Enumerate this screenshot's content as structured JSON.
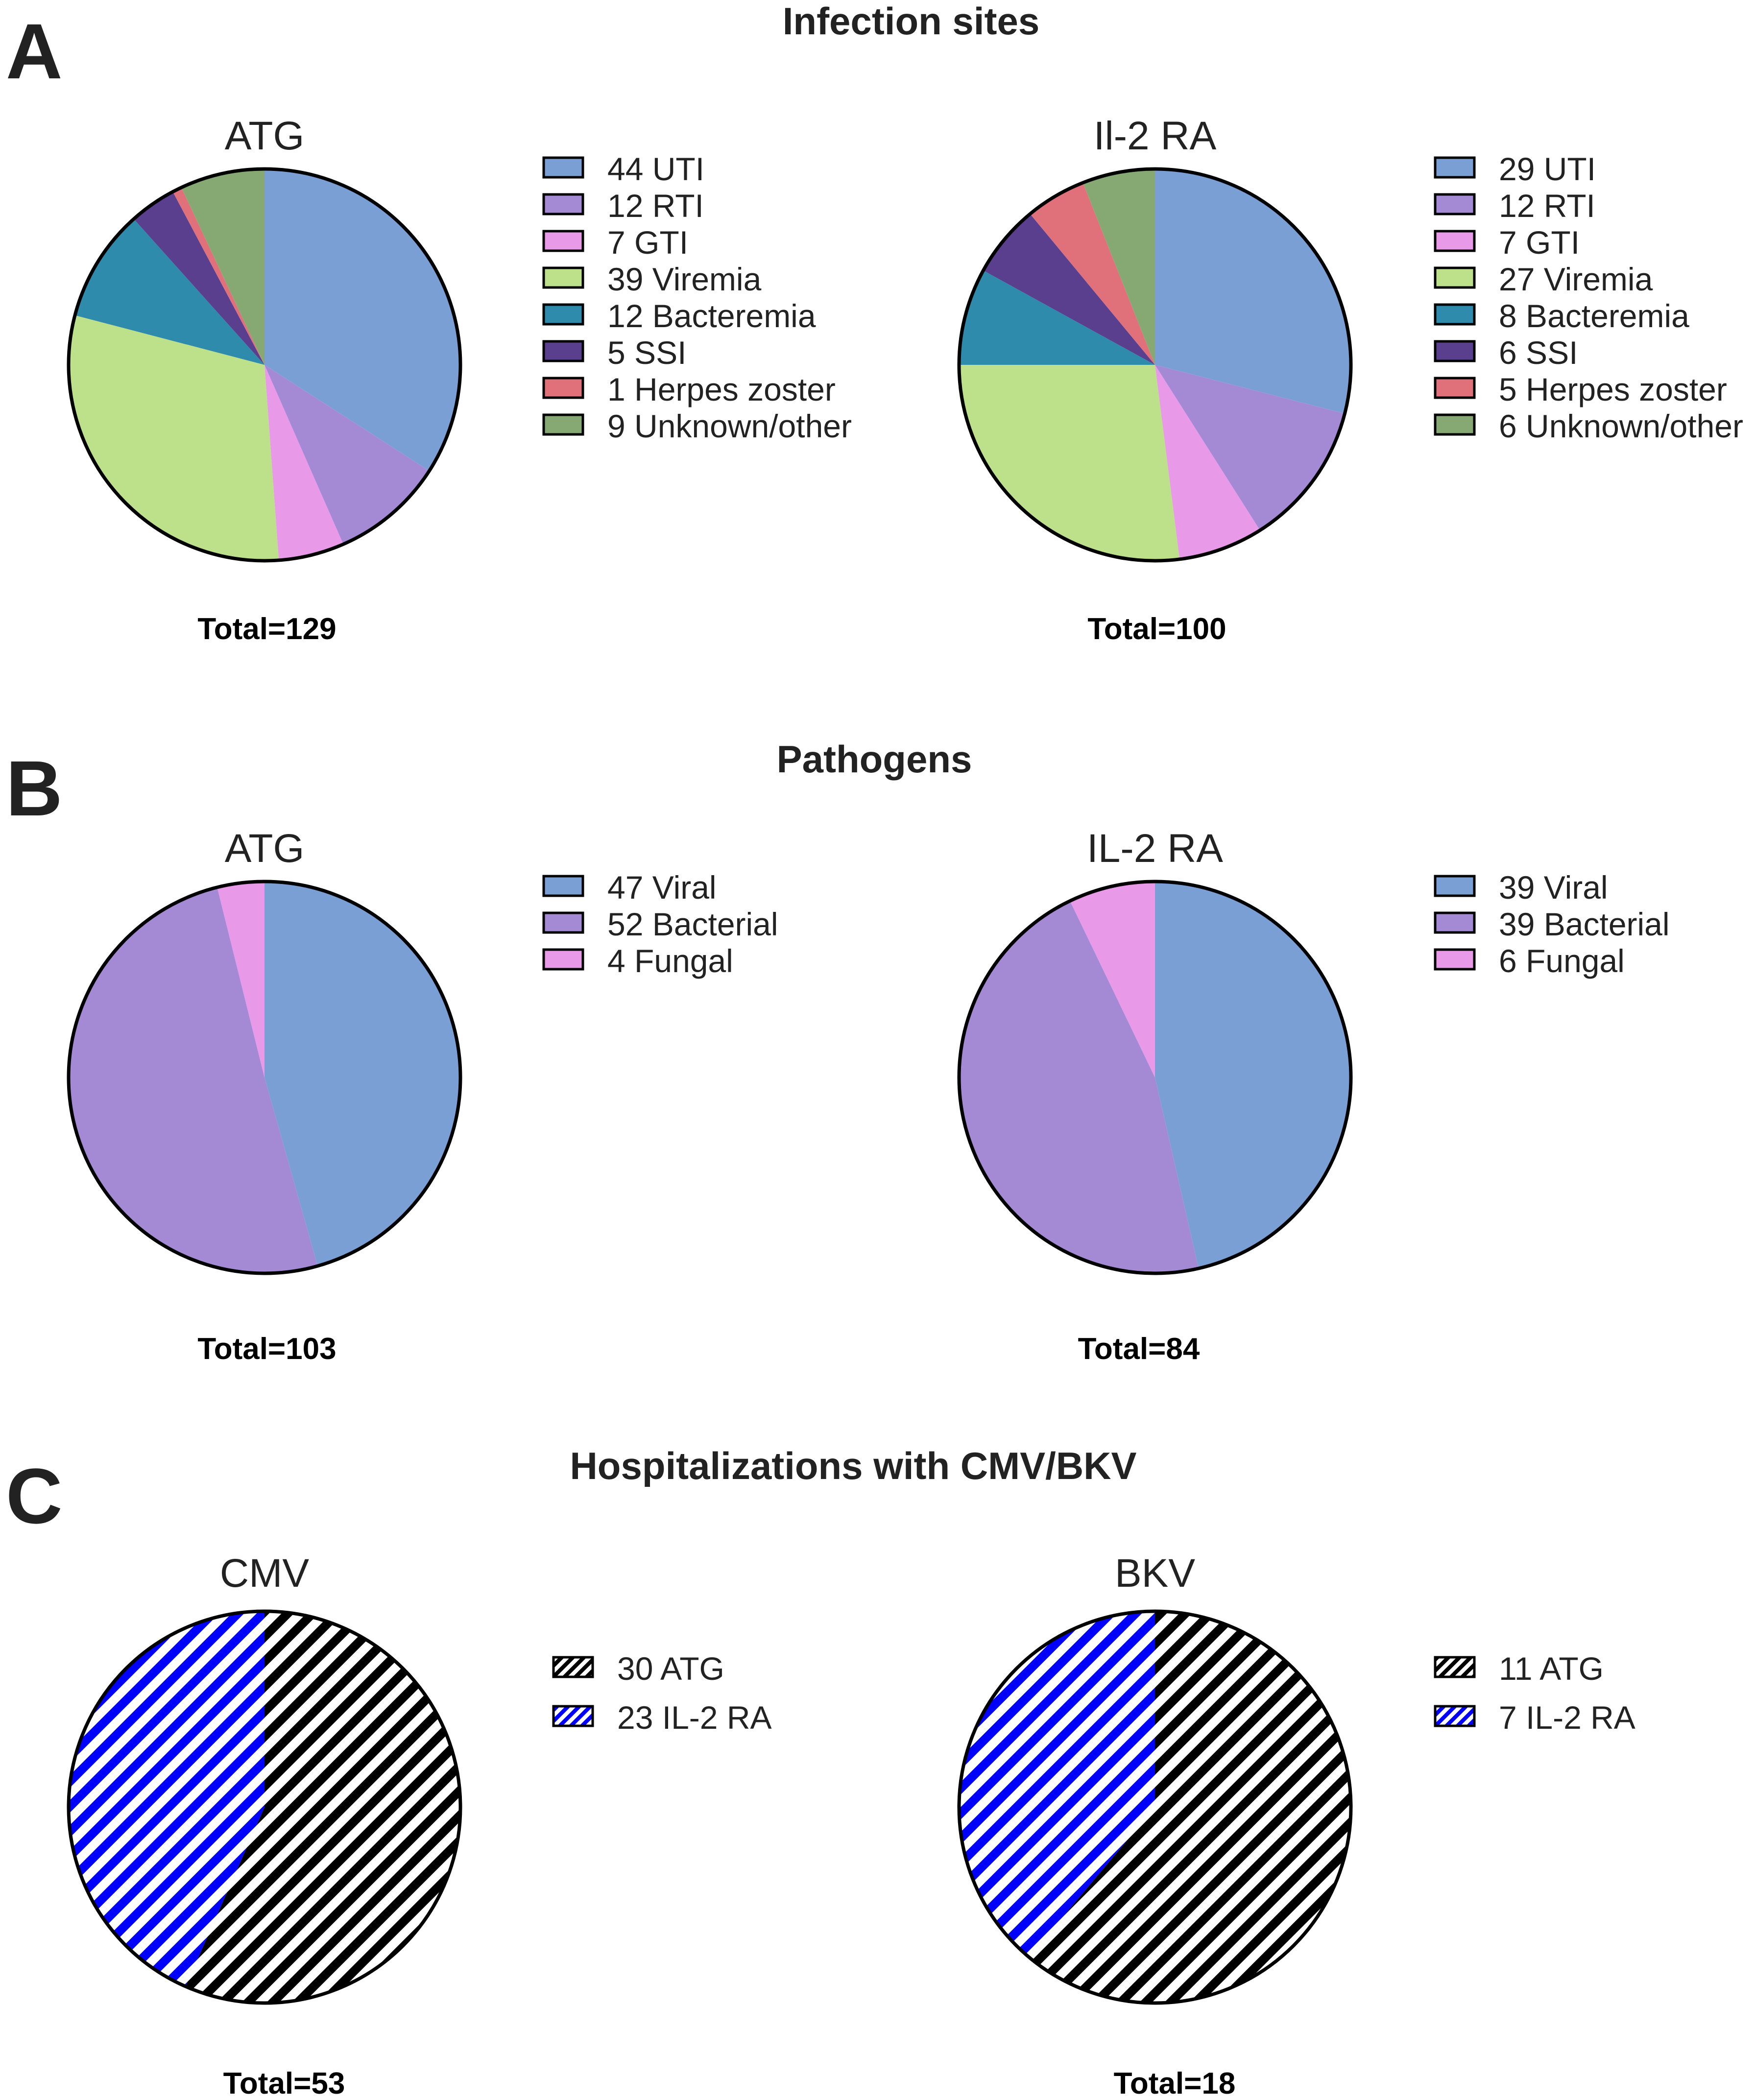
{
  "sections": [
    {
      "letter": "A",
      "title": "Infection sites"
    },
    {
      "letter": "B",
      "title": "Pathogens"
    },
    {
      "letter": "C",
      "title": "Hospitalizations with CMV/BKV"
    }
  ],
  "chart_data": [
    {
      "type": "pie",
      "section": "A",
      "title": "ATG",
      "total_label": "Total=129",
      "total": 129,
      "slices": [
        {
          "label": "UTI",
          "legend": "44 UTI",
          "value": 44,
          "color": "#7a9fd5"
        },
        {
          "label": "RTI",
          "legend": "12 RTI",
          "value": 12,
          "color": "#a48ad4"
        },
        {
          "label": "GTI",
          "legend": "7 GTI",
          "value": 7,
          "color": "#e899e8"
        },
        {
          "label": "Viremia",
          "legend": "39 Viremia",
          "value": 39,
          "color": "#bde08a"
        },
        {
          "label": "Bacteremia",
          "legend": "12 Bacteremia",
          "value": 12,
          "color": "#2e8bab"
        },
        {
          "label": "SSI",
          "legend": "5 SSI",
          "value": 5,
          "color": "#5a3f8f"
        },
        {
          "label": "Herpes zoster",
          "legend": "1 Herpes zoster",
          "value": 1,
          "color": "#e0707a"
        },
        {
          "label": "Unknown/other",
          "legend": "9 Unknown/other",
          "value": 9,
          "color": "#86a873"
        }
      ]
    },
    {
      "type": "pie",
      "section": "A",
      "title": "Il-2 RA",
      "total_label": "Total=100",
      "total": 100,
      "slices": [
        {
          "label": "UTI",
          "legend": "29 UTI",
          "value": 29,
          "color": "#7a9fd5"
        },
        {
          "label": "RTI",
          "legend": "12 RTI",
          "value": 12,
          "color": "#a48ad4"
        },
        {
          "label": "GTI",
          "legend": "7 GTI",
          "value": 7,
          "color": "#e899e8"
        },
        {
          "label": "Viremia",
          "legend": "27 Viremia",
          "value": 27,
          "color": "#bde08a"
        },
        {
          "label": "Bacteremia",
          "legend": "8 Bacteremia",
          "value": 8,
          "color": "#2e8bab"
        },
        {
          "label": "SSI",
          "legend": "6 SSI",
          "value": 6,
          "color": "#5a3f8f"
        },
        {
          "label": "Herpes zoster",
          "legend": "5 Herpes zoster",
          "value": 5,
          "color": "#e0707a"
        },
        {
          "label": "Unknown/other",
          "legend": "6 Unknown/other",
          "value": 6,
          "color": "#86a873"
        }
      ]
    },
    {
      "type": "pie",
      "section": "B",
      "title": "ATG",
      "total_label": "Total=103",
      "total": 103,
      "slices": [
        {
          "label": "Viral",
          "legend": "47 Viral",
          "value": 47,
          "color": "#7a9fd5"
        },
        {
          "label": "Bacterial",
          "legend": "52 Bacterial",
          "value": 52,
          "color": "#a48ad4"
        },
        {
          "label": "Fungal",
          "legend": "4 Fungal",
          "value": 4,
          "color": "#e899e8"
        }
      ]
    },
    {
      "type": "pie",
      "section": "B",
      "title": "IL-2 RA",
      "total_label": "Total=84",
      "total": 84,
      "slices": [
        {
          "label": "Viral",
          "legend": "39 Viral",
          "value": 39,
          "color": "#7a9fd5"
        },
        {
          "label": "Bacterial",
          "legend": "39 Bacterial",
          "value": 39,
          "color": "#a48ad4"
        },
        {
          "label": "Fungal",
          "legend": "6 Fungal",
          "value": 6,
          "color": "#e899e8"
        }
      ]
    },
    {
      "type": "pie",
      "section": "C",
      "title": "CMV",
      "total_label": "Total=53",
      "total": 53,
      "slices": [
        {
          "label": "ATG",
          "legend": "30 ATG",
          "value": 30,
          "color": "#000000",
          "pattern": "hatch"
        },
        {
          "label": "IL-2 RA",
          "legend": "23 IL-2 RA",
          "value": 23,
          "color": "#0000ff",
          "pattern": "hatch"
        }
      ]
    },
    {
      "type": "pie",
      "section": "C",
      "title": "BKV",
      "total_label": "Total=18",
      "total": 18,
      "slices": [
        {
          "label": "ATG",
          "legend": "11 ATG",
          "value": 11,
          "color": "#000000",
          "pattern": "hatch"
        },
        {
          "label": "IL-2 RA",
          "legend": "7 IL-2 RA",
          "value": 7,
          "color": "#0000ff",
          "pattern": "hatch"
        }
      ]
    }
  ]
}
